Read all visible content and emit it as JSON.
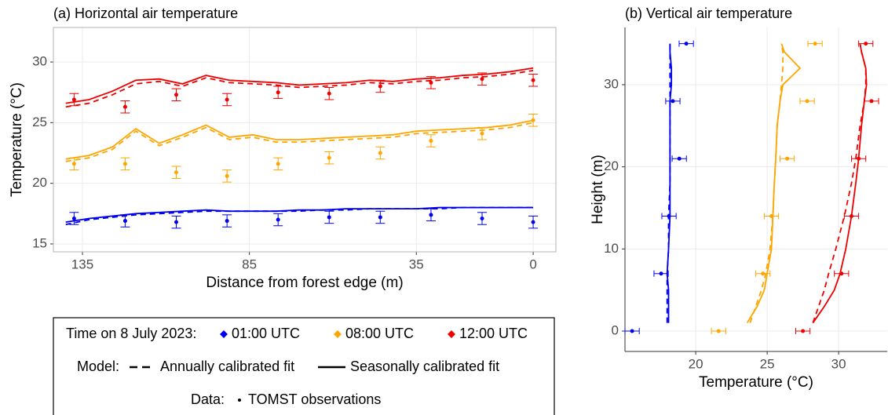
{
  "chart_data": [
    {
      "type": "line",
      "orientation": "horizontal",
      "title": "(a) Horizontal air temperature",
      "xlabel": "Distance from forest edge (m)",
      "ylabel": "Temperature (°C)",
      "xlim": [
        143.7,
        -6.8
      ],
      "ylim": [
        14.35,
        32.85
      ],
      "xticks": [
        135,
        85,
        35,
        0
      ],
      "yticks": [
        15,
        20,
        25,
        30
      ],
      "grid": true,
      "model_x": [
        140,
        133,
        126,
        119,
        112,
        105,
        98,
        91,
        84,
        77,
        70,
        63,
        56,
        49,
        42,
        35,
        28,
        21,
        14,
        7,
        0
      ],
      "obs_x": [
        137.5,
        122.2,
        106.9,
        91.7,
        76.4,
        61.1,
        45.8,
        30.6,
        15.3,
        0
      ],
      "series": [
        {
          "name": "01:00 UTC",
          "color": "#0000ee",
          "annual": [
            16.6,
            17.0,
            17.2,
            17.4,
            17.5,
            17.6,
            17.7,
            17.7,
            17.7,
            17.7,
            17.7,
            17.8,
            17.8,
            17.9,
            17.9,
            17.9,
            17.9,
            18.0,
            18.0,
            18.0,
            18.0
          ],
          "seasonal": [
            16.8,
            17.1,
            17.3,
            17.5,
            17.6,
            17.7,
            17.8,
            17.7,
            17.7,
            17.7,
            17.8,
            17.8,
            17.9,
            17.9,
            17.9,
            17.9,
            18.0,
            18.0,
            18.0,
            18.0,
            18.0
          ],
          "obs": [
            17.1,
            16.9,
            16.8,
            16.9,
            17.0,
            17.2,
            17.2,
            17.4,
            17.1,
            16.8
          ],
          "obs_err": [
            0.5,
            0.5,
            0.5,
            0.5,
            0.5,
            0.5,
            0.5,
            0.5,
            0.5,
            0.5
          ]
        },
        {
          "name": "08:00 UTC",
          "color": "#ffa500",
          "annual": [
            21.8,
            22.1,
            22.8,
            24.3,
            23.1,
            23.8,
            24.6,
            23.6,
            23.8,
            23.4,
            23.4,
            23.5,
            23.6,
            23.7,
            23.8,
            24.1,
            24.2,
            24.3,
            24.4,
            24.6,
            25.0
          ],
          "seasonal": [
            22.0,
            22.3,
            23.0,
            24.5,
            23.3,
            24.0,
            24.8,
            23.8,
            24.0,
            23.6,
            23.6,
            23.7,
            23.8,
            23.9,
            24.0,
            24.3,
            24.4,
            24.5,
            24.6,
            24.8,
            25.2
          ],
          "obs": [
            21.6,
            21.6,
            20.9,
            20.6,
            21.6,
            22.1,
            22.5,
            23.5,
            24.1,
            25.2
          ],
          "obs_err": [
            0.5,
            0.5,
            0.5,
            0.5,
            0.5,
            0.5,
            0.5,
            0.5,
            0.5,
            0.5
          ]
        },
        {
          "name": "12:00 UTC",
          "color": "#ee0000",
          "annual": [
            26.3,
            26.6,
            27.3,
            28.2,
            28.4,
            28.0,
            28.7,
            28.3,
            28.2,
            28.1,
            27.9,
            28.0,
            28.1,
            28.3,
            28.2,
            28.4,
            28.5,
            28.7,
            28.8,
            29.0,
            29.3
          ],
          "seasonal": [
            26.6,
            26.9,
            27.6,
            28.5,
            28.6,
            28.2,
            28.9,
            28.5,
            28.4,
            28.3,
            28.1,
            28.2,
            28.3,
            28.5,
            28.4,
            28.6,
            28.7,
            28.9,
            29.0,
            29.2,
            29.5
          ],
          "obs": [
            26.9,
            26.3,
            27.3,
            26.9,
            27.5,
            27.4,
            28.0,
            28.3,
            28.6,
            28.5
          ],
          "obs_err": [
            0.5,
            0.5,
            0.5,
            0.5,
            0.5,
            0.5,
            0.5,
            0.5,
            0.5,
            0.5
          ]
        }
      ],
      "legend": {
        "title": "Time on 8 July 2023:",
        "model_title": "Model:",
        "annual": "Annually calibrated fit",
        "seasonal": "Seasonally calibrated fit",
        "data_title": "Data:",
        "obs": "TOMST observations"
      }
    },
    {
      "type": "line",
      "orientation": "vertical",
      "title": "(b) Vertical air temperature",
      "xlabel": "Temperature (°C)",
      "ylabel": "Height (m)",
      "xlim": [
        15.05,
        33.4
      ],
      "ylim": [
        -2.48,
        36.97
      ],
      "xticks": [
        20,
        25,
        30
      ],
      "yticks": [
        0,
        10,
        20,
        30
      ],
      "grid": true,
      "model_x": [
        1,
        3,
        5,
        7,
        10,
        14,
        18,
        21,
        25,
        28,
        30,
        32,
        34,
        35
      ],
      "obs_x": [
        0,
        7,
        14,
        21,
        28,
        35
      ],
      "series": [
        {
          "color": "#0000ee",
          "annual": [
            18.0,
            18.0,
            18.0,
            18.0,
            18.1,
            18.1,
            18.2,
            18.2,
            18.2,
            18.2,
            18.2,
            18.2,
            18.2,
            18.2
          ],
          "seasonal": [
            18.1,
            18.1,
            18.1,
            18.0,
            18.1,
            18.2,
            18.2,
            18.2,
            18.2,
            18.2,
            18.3,
            18.3,
            18.2,
            18.2
          ],
          "obs": [
            15.55,
            17.58,
            18.13,
            18.85,
            18.4,
            19.34
          ],
          "obs_err": [
            0.5,
            0.5,
            0.5,
            0.5,
            0.5,
            0.5
          ]
        },
        {
          "color": "#ffa500",
          "annual": [
            23.8,
            24.2,
            24.6,
            24.9,
            25.2,
            25.4,
            25.5,
            25.6,
            25.7,
            25.9,
            26.0,
            26.1,
            26.1,
            26.0
          ],
          "seasonal": [
            23.6,
            24.3,
            24.8,
            25.0,
            25.3,
            25.4,
            25.5,
            25.6,
            25.7,
            25.9,
            26.1,
            27.3,
            26.2,
            26.0
          ],
          "obs": [
            21.6,
            24.7,
            25.3,
            26.4,
            27.8,
            28.35
          ],
          "obs_err": [
            0.5,
            0.5,
            0.5,
            0.5,
            0.5,
            0.5
          ]
        },
        {
          "color": "#ee0000",
          "annual": [
            28.2,
            28.6,
            29.0,
            29.3,
            29.8,
            30.4,
            30.9,
            31.2,
            31.5,
            31.8,
            31.9,
            31.9,
            31.6,
            31.5
          ],
          "seasonal": [
            28.2,
            29.0,
            29.7,
            30.1,
            30.5,
            30.9,
            31.2,
            31.4,
            31.6,
            31.8,
            31.95,
            31.9,
            31.6,
            31.5
          ],
          "obs": [
            27.5,
            30.2,
            30.9,
            31.4,
            32.3,
            31.9
          ],
          "obs_err": [
            0.5,
            0.5,
            0.5,
            0.5,
            0.5,
            0.5
          ]
        }
      ]
    }
  ]
}
